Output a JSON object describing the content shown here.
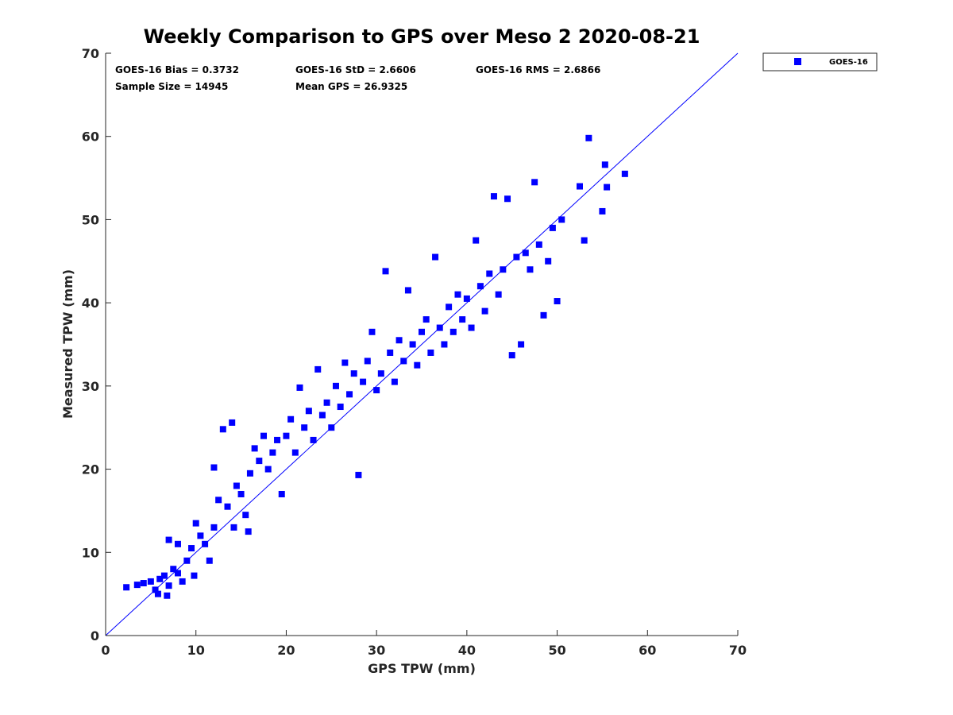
{
  "chart_data": {
    "type": "scatter",
    "title": "Weekly Comparison to GPS over Meso 2 2020-08-21",
    "xlabel": "GPS TPW (mm)",
    "ylabel": "Measured TPW (mm)",
    "xlim": [
      0,
      70
    ],
    "ylim": [
      0,
      70
    ],
    "xticks": [
      "0",
      "10",
      "20",
      "30",
      "40",
      "50",
      "60",
      "70"
    ],
    "yticks": [
      "0",
      "10",
      "20",
      "30",
      "40",
      "50",
      "60",
      "70"
    ],
    "grid": false,
    "legend_position": "outside-top-right",
    "marker_color": "#0000ff",
    "stats": [
      "GOES-16 Bias = 0.3732",
      "GOES-16 StD = 2.6606",
      "GOES-16 RMS = 2.6866",
      "Sample Size = 14945",
      "Mean GPS = 26.9325"
    ],
    "reference_line": {
      "x": [
        0,
        70
      ],
      "y": [
        0,
        70
      ]
    },
    "series": [
      {
        "name": "GOES-16",
        "points": [
          [
            2.3,
            5.8
          ],
          [
            3.5,
            6.1
          ],
          [
            4.2,
            6.3
          ],
          [
            5.0,
            6.5
          ],
          [
            5.5,
            5.5
          ],
          [
            6.0,
            6.8
          ],
          [
            6.5,
            7.2
          ],
          [
            7.0,
            6.0
          ],
          [
            7.5,
            8.0
          ],
          [
            8.0,
            7.5
          ],
          [
            8.5,
            6.5
          ],
          [
            9.0,
            9.0
          ],
          [
            7.0,
            11.5
          ],
          [
            8.0,
            11.0
          ],
          [
            9.5,
            10.5
          ],
          [
            10.0,
            13.5
          ],
          [
            10.5,
            12.0
          ],
          [
            11.0,
            11.0
          ],
          [
            12.0,
            13.0
          ],
          [
            12.5,
            16.3
          ],
          [
            12.0,
            20.2
          ],
          [
            13.0,
            24.8
          ],
          [
            14.0,
            25.6
          ],
          [
            13.5,
            15.5
          ],
          [
            14.5,
            18.0
          ],
          [
            15.0,
            17.0
          ],
          [
            15.5,
            14.5
          ],
          [
            16.0,
            19.5
          ],
          [
            16.5,
            22.5
          ],
          [
            17.0,
            21.0
          ],
          [
            17.5,
            24.0
          ],
          [
            18.0,
            20.0
          ],
          [
            18.5,
            22.0
          ],
          [
            19.0,
            23.5
          ],
          [
            19.5,
            17.0
          ],
          [
            20.0,
            24.0
          ],
          [
            20.5,
            26.0
          ],
          [
            21.0,
            22.0
          ],
          [
            21.5,
            29.8
          ],
          [
            22.0,
            25.0
          ],
          [
            22.5,
            27.0
          ],
          [
            23.0,
            23.5
          ],
          [
            23.5,
            32.0
          ],
          [
            24.0,
            26.5
          ],
          [
            24.5,
            28.0
          ],
          [
            25.0,
            25.0
          ],
          [
            25.5,
            30.0
          ],
          [
            26.0,
            27.5
          ],
          [
            26.5,
            32.8
          ],
          [
            27.0,
            29.0
          ],
          [
            27.5,
            31.5
          ],
          [
            28.0,
            19.3
          ],
          [
            28.5,
            30.5
          ],
          [
            29.0,
            33.0
          ],
          [
            29.5,
            36.5
          ],
          [
            30.0,
            29.5
          ],
          [
            30.5,
            31.5
          ],
          [
            31.0,
            43.8
          ],
          [
            31.5,
            34.0
          ],
          [
            32.0,
            30.5
          ],
          [
            32.5,
            35.5
          ],
          [
            33.0,
            33.0
          ],
          [
            33.5,
            41.5
          ],
          [
            34.0,
            35.0
          ],
          [
            34.5,
            32.5
          ],
          [
            35.0,
            36.5
          ],
          [
            35.5,
            38.0
          ],
          [
            36.0,
            34.0
          ],
          [
            36.5,
            45.5
          ],
          [
            37.0,
            37.0
          ],
          [
            37.5,
            35.0
          ],
          [
            38.0,
            39.5
          ],
          [
            38.5,
            36.5
          ],
          [
            39.0,
            41.0
          ],
          [
            39.5,
            38.0
          ],
          [
            40.0,
            40.5
          ],
          [
            40.5,
            37.0
          ],
          [
            41.0,
            47.5
          ],
          [
            41.5,
            42.0
          ],
          [
            42.0,
            39.0
          ],
          [
            42.5,
            43.5
          ],
          [
            43.0,
            52.8
          ],
          [
            43.5,
            41.0
          ],
          [
            44.0,
            44.0
          ],
          [
            44.5,
            52.5
          ],
          [
            45.0,
            33.7
          ],
          [
            45.5,
            45.5
          ],
          [
            46.0,
            35.0
          ],
          [
            46.5,
            46.0
          ],
          [
            47.0,
            44.0
          ],
          [
            47.5,
            54.5
          ],
          [
            48.0,
            47.0
          ],
          [
            48.5,
            38.5
          ],
          [
            49.0,
            45.0
          ],
          [
            49.5,
            49.0
          ],
          [
            50.0,
            40.2
          ],
          [
            50.5,
            50.0
          ],
          [
            52.5,
            54.0
          ],
          [
            53.0,
            47.5
          ],
          [
            53.5,
            59.8
          ],
          [
            55.0,
            51.0
          ],
          [
            55.3,
            56.6
          ],
          [
            55.5,
            53.9
          ],
          [
            57.5,
            55.5
          ],
          [
            5.8,
            5.0
          ],
          [
            6.8,
            4.8
          ],
          [
            9.8,
            7.2
          ],
          [
            11.5,
            9.0
          ],
          [
            14.2,
            13.0
          ],
          [
            15.8,
            12.5
          ]
        ]
      }
    ]
  }
}
